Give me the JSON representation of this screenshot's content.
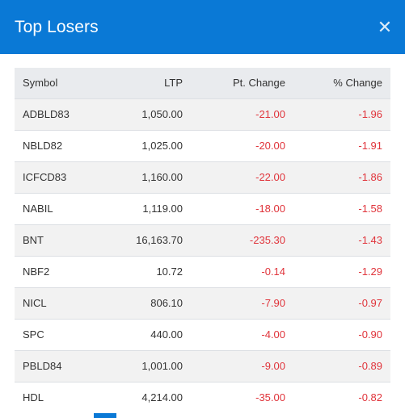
{
  "modal": {
    "title": "Top Losers",
    "close_glyph": "✕"
  },
  "table": {
    "headers": {
      "symbol": "Symbol",
      "ltp": "LTP",
      "pt_change": "Pt. Change",
      "pct_change": "% Change"
    },
    "rows": [
      {
        "symbol": "ADBLD83",
        "ltp": "1,050.00",
        "pt_change": "-21.00",
        "pct_change": "-1.96"
      },
      {
        "symbol": "NBLD82",
        "ltp": "1,025.00",
        "pt_change": "-20.00",
        "pct_change": "-1.91"
      },
      {
        "symbol": "ICFCD83",
        "ltp": "1,160.00",
        "pt_change": "-22.00",
        "pct_change": "-1.86"
      },
      {
        "symbol": "NABIL",
        "ltp": "1,119.00",
        "pt_change": "-18.00",
        "pct_change": "-1.58"
      },
      {
        "symbol": "BNT",
        "ltp": "16,163.70",
        "pt_change": "-235.30",
        "pct_change": "-1.43"
      },
      {
        "symbol": "NBF2",
        "ltp": "10.72",
        "pt_change": "-0.14",
        "pct_change": "-1.29"
      },
      {
        "symbol": "NICL",
        "ltp": "806.10",
        "pt_change": "-7.90",
        "pct_change": "-0.97"
      },
      {
        "symbol": "SPC",
        "ltp": "440.00",
        "pt_change": "-4.00",
        "pct_change": "-0.90"
      },
      {
        "symbol": "PBLD84",
        "ltp": "1,001.00",
        "pt_change": "-9.00",
        "pct_change": "-0.89"
      },
      {
        "symbol": "HDL",
        "ltp": "4,214.00",
        "pt_change": "-35.00",
        "pct_change": "-0.82"
      }
    ]
  },
  "colors": {
    "header_bg": "#0a79d6",
    "negative": "#e0343b"
  }
}
